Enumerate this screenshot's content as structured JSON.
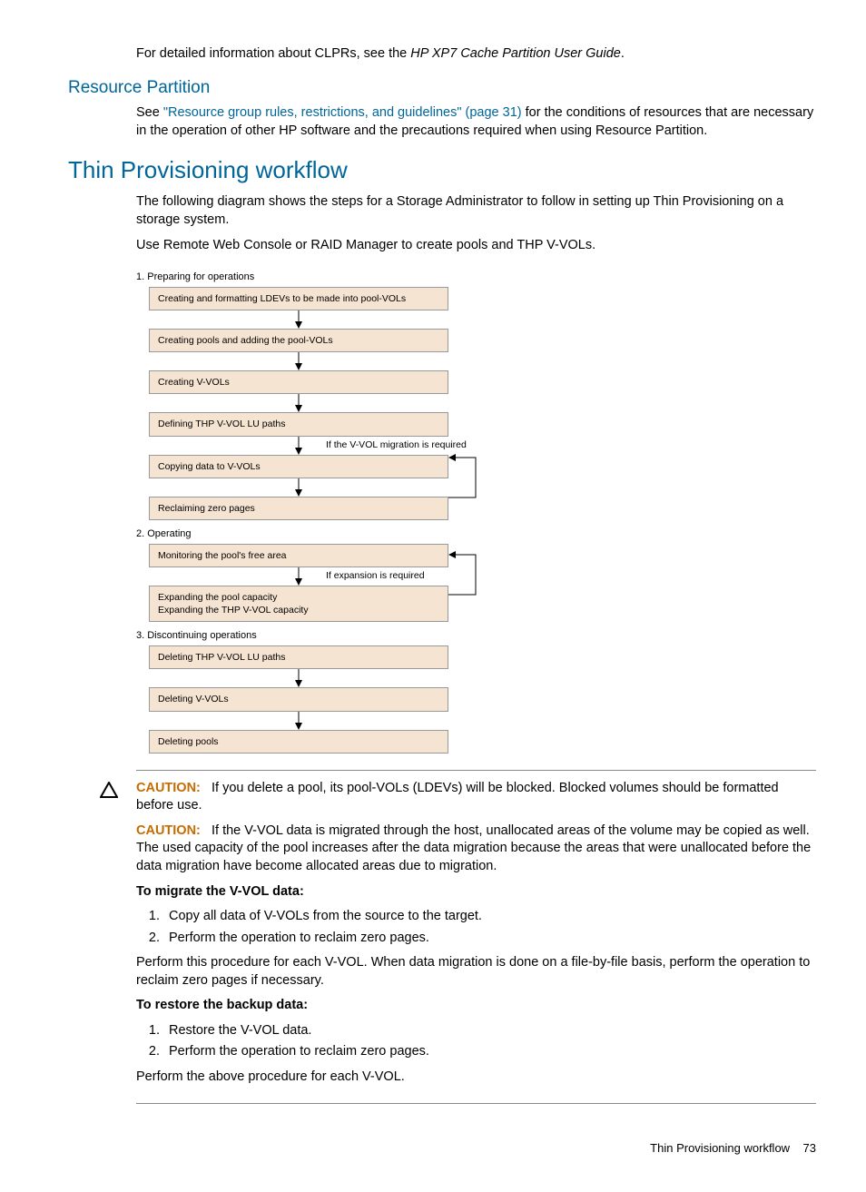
{
  "intro": {
    "pre_text": "For detailed information about CLPRs, see the ",
    "doc_title": "HP XP7 Cache Partition User Guide",
    "post_text": "."
  },
  "resource_partition": {
    "heading": "Resource Partition",
    "pre_link": "See ",
    "link_text": "\"Resource group rules, restrictions, and guidelines\" (page 31)",
    "post_link": " for the conditions of resources that are necessary in the operation of other HP software and the precautions required when using Resource Partition."
  },
  "workflow": {
    "heading": "Thin Provisioning workflow",
    "para1": "The following diagram shows the steps for a Storage Administrator to follow in setting up Thin Provisioning on a storage system.",
    "para2": "Use Remote Web Console or RAID Manager to create pools and THP V-VOLs."
  },
  "diagram": {
    "section1": {
      "label": "1. Preparing for operations",
      "boxes": [
        "Creating and formatting LDEVs to be made into pool-VOLs",
        "Creating pools and adding the pool-VOLs",
        "Creating V-VOLs",
        "Defining THP V-VOL LU paths",
        "Copying data to V-VOLs",
        "Reclaiming zero pages"
      ],
      "note_after_box_index": 3,
      "note": "If the V-VOL migration is required",
      "loop_from_index": 5,
      "loop_to_index": 4
    },
    "section2": {
      "label": "2. Operating",
      "boxes": [
        "Monitoring the pool's free area",
        "Expanding the pool capacity\nExpanding the THP V-VOL capacity"
      ],
      "note_after_box_index": 0,
      "note": "If expansion is required",
      "loop_from_index": 1,
      "loop_to_index": 0
    },
    "section3": {
      "label": "3. Discontinuing operations",
      "boxes": [
        "Deleting THP V-VOL LU paths",
        "Deleting V-VOLs",
        "Deleting pools"
      ]
    },
    "colors": {
      "box_bg": "#f6e4d2",
      "box_border": "#999999",
      "arrow": "#000000"
    }
  },
  "cautions": {
    "label": "CAUTION:",
    "c1": "If you delete a pool, its pool-VOLs (LDEVs) will be blocked. Blocked volumes should be formatted before use.",
    "c2": "If the V-VOL data is migrated through the host, unallocated areas of the volume may be copied as well. The used capacity of the pool increases after the data migration because the areas that were unallocated before the data migration have become allocated areas due to migration."
  },
  "migrate": {
    "heading": "To migrate the V-VOL data:",
    "steps": [
      "Copy all data of V-VOLs from the source to the target.",
      "Perform the operation to reclaim zero pages."
    ],
    "after": "Perform this procedure for each V-VOL. When data migration is done on a file-by-file basis, perform the operation to reclaim zero pages if necessary."
  },
  "restore": {
    "heading": "To restore the backup data:",
    "steps": [
      "Restore the V-VOL data.",
      "Perform the operation to reclaim zero pages."
    ],
    "after": "Perform the above procedure for each V-VOL."
  },
  "footer": {
    "text": "Thin Provisioning workflow",
    "page": "73"
  }
}
